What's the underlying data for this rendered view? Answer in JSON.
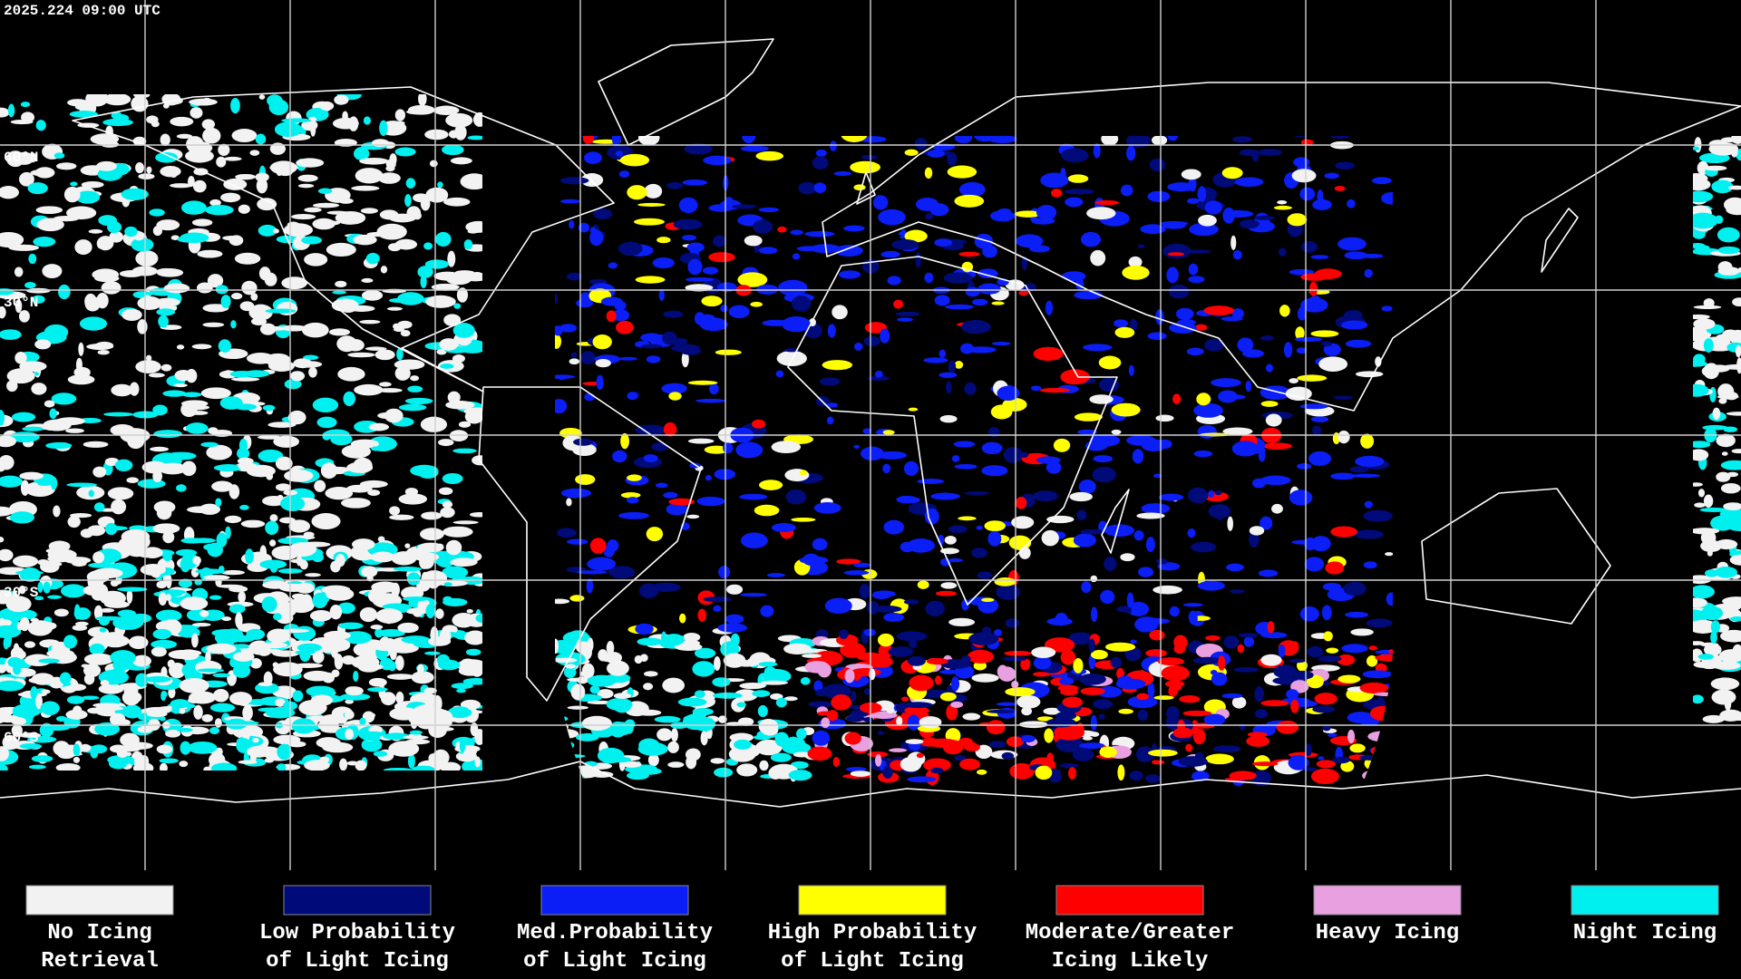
{
  "timestamp": "2025.224 09:00 UTC",
  "grid": {
    "lat_labels": [
      "60°N",
      "30°N",
      "30°S",
      "60°S"
    ]
  },
  "legend": [
    {
      "lines": [
        "No Icing",
        "Retrieval"
      ],
      "color": "#f2f2f2"
    },
    {
      "lines": [
        "Low Probability",
        "of Light Icing"
      ],
      "color": "#000a78"
    },
    {
      "lines": [
        "Med.Probability",
        "of Light Icing"
      ],
      "color": "#0a1ef5"
    },
    {
      "lines": [
        "High Probability",
        "of Light Icing"
      ],
      "color": "#ffff00"
    },
    {
      "lines": [
        "Moderate/Greater",
        "Icing Likely"
      ],
      "color": "#ff0000"
    },
    {
      "lines": [
        "Heavy Icing"
      ],
      "color": "#e8a0e0"
    },
    {
      "lines": [
        "Night Icing"
      ],
      "color": "#00f0f0"
    }
  ]
}
